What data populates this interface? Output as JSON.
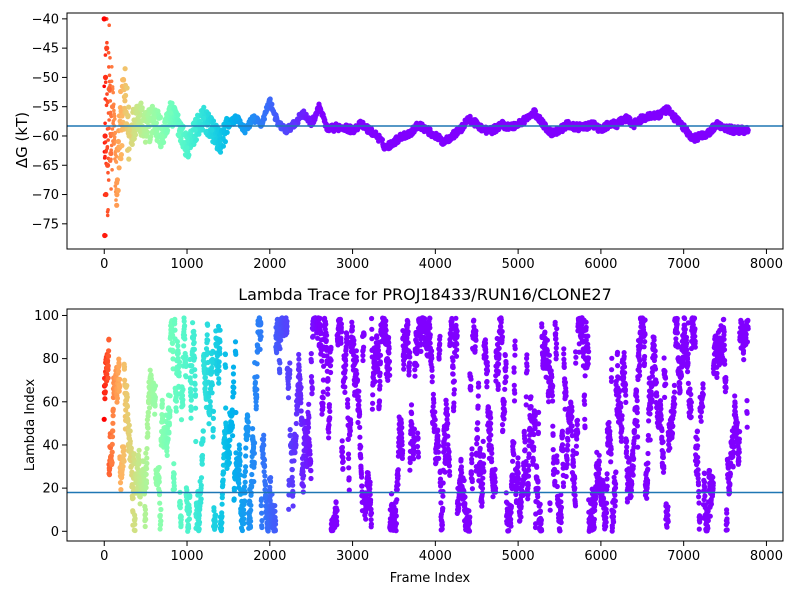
{
  "chart_data": [
    {
      "type": "scatter",
      "title": "",
      "xlabel": "",
      "ylabel": "ΔG (kT)",
      "xlim": [
        -450,
        8200
      ],
      "ylim": [
        -79.3,
        -39
      ],
      "xticks": [
        0,
        1000,
        2000,
        3000,
        4000,
        5000,
        6000,
        7000,
        8000
      ],
      "xtick_labels": [
        "0",
        "1000",
        "2000",
        "3000",
        "4000",
        "5000",
        "6000",
        "7000",
        "8000"
      ],
      "yticks": [
        -40,
        -45,
        -50,
        -55,
        -60,
        -65,
        -70,
        -75
      ],
      "ytick_labels": [
        "−40",
        "−45",
        "−50",
        "−55",
        "−60",
        "−65",
        "−70",
        "−75"
      ],
      "hline": {
        "y": -58.3,
        "color": "#1f77b4"
      },
      "color_by": "frame index (rainbow, late frames purple, early frames red)",
      "series": [
        {
          "x": [
            0,
            5,
            10,
            15,
            20,
            30,
            40,
            60,
            80,
            100,
            150,
            200,
            250,
            300,
            400,
            500,
            600,
            700,
            800,
            900,
            1000,
            1100,
            1200,
            1300,
            1400,
            1500,
            1600,
            1700,
            1800,
            1900,
            2000,
            2100,
            2200,
            2300,
            2400,
            2500,
            2600,
            2700,
            2800,
            2900,
            3000,
            3100,
            3200,
            3300,
            3400,
            3500,
            3600,
            3700,
            3800,
            3900,
            4000,
            4100,
            4200,
            4300,
            4400,
            4500,
            4600,
            4700,
            4800,
            4900,
            5000,
            5100,
            5200,
            5300,
            5400,
            5500,
            5600,
            5700,
            5800,
            5900,
            6000,
            6100,
            6200,
            6300,
            6400,
            6500,
            6600,
            6700,
            6800,
            6900,
            7000,
            7100,
            7200,
            7300,
            7400,
            7500,
            7600,
            7700,
            7780
          ],
          "y": [
            -40,
            -77,
            -60,
            -50,
            -70,
            -45,
            -65,
            -52,
            -63,
            -55,
            -68,
            -58,
            -54,
            -60,
            -56,
            -59,
            -57,
            -60,
            -56,
            -58,
            -62,
            -59,
            -57,
            -59,
            -61,
            -58,
            -57,
            -59,
            -57,
            -58,
            -54,
            -58,
            -59,
            -58,
            -56,
            -58,
            -55,
            -59,
            -58.5,
            -58.5,
            -59,
            -58,
            -59,
            -60,
            -62,
            -61,
            -60,
            -59.5,
            -58,
            -59,
            -60,
            -61,
            -60,
            -59,
            -57,
            -58,
            -59,
            -59,
            -58,
            -58.5,
            -58,
            -57,
            -56,
            -58,
            -59.5,
            -59,
            -58,
            -58.5,
            -58.5,
            -58,
            -59,
            -58,
            -58,
            -57,
            -58,
            -57,
            -56.5,
            -56.5,
            -55.5,
            -57,
            -58.5,
            -60.5,
            -60,
            -59.5,
            -58,
            -58.5,
            -59,
            -59,
            -59
          ]
        }
      ]
    },
    {
      "type": "scatter",
      "title": "Lambda Trace for PROJ18433/RUN16/CLONE27",
      "xlabel": "Frame Index",
      "ylabel": "Lambda Index",
      "xlim": [
        -450,
        8200
      ],
      "ylim": [
        -4.5,
        103
      ],
      "xticks": [
        0,
        1000,
        2000,
        3000,
        4000,
        5000,
        6000,
        7000,
        8000
      ],
      "xtick_labels": [
        "0",
        "1000",
        "2000",
        "3000",
        "4000",
        "5000",
        "6000",
        "7000",
        "8000"
      ],
      "yticks": [
        0,
        20,
        40,
        60,
        80,
        100
      ],
      "ytick_labels": [
        "0",
        "20",
        "40",
        "60",
        "80",
        "100"
      ],
      "hline": {
        "y": 18,
        "color": "#1f77b4"
      },
      "color_by": "frame index (rainbow, late frames purple, early frames red)",
      "value_range": [
        0,
        99
      ]
    }
  ]
}
